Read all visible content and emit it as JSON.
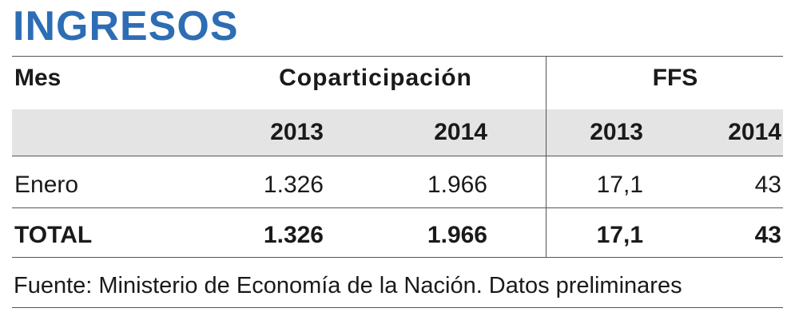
{
  "title": "INGRESOS",
  "table": {
    "columns": {
      "month": "Mes",
      "groups": [
        "Coparticipación",
        "FFS"
      ]
    },
    "years": [
      "2013",
      "2014",
      "2013",
      "2014"
    ],
    "rows": [
      [
        "Enero",
        "1.326",
        "1.966",
        "17,1",
        "43"
      ],
      [
        "TOTAL",
        "1.326",
        "1.966",
        "17,1",
        "43"
      ]
    ]
  },
  "source": "Fuente: Ministerio de Economía de la Nación. Datos preliminares"
}
